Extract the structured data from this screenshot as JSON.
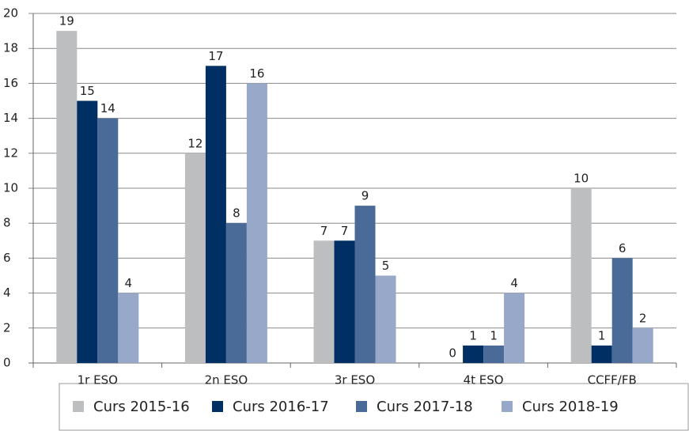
{
  "chart_data": {
    "type": "bar",
    "categories": [
      "1r ESO",
      "2n ESO",
      "3r ESO",
      "4t ESO",
      "CCFF/FB"
    ],
    "series": [
      {
        "name": "Curs 2015-16",
        "color": "#bcbec0",
        "values": [
          19,
          12,
          7,
          0,
          10
        ]
      },
      {
        "name": "Curs 2016-17",
        "color": "#003063",
        "values": [
          15,
          17,
          7,
          1,
          1
        ]
      },
      {
        "name": "Curs 2017-18",
        "color": "#4a6a98",
        "values": [
          14,
          8,
          9,
          1,
          6
        ]
      },
      {
        "name": "Curs 2018-19",
        "color": "#97a8c9",
        "values": [
          4,
          16,
          5,
          4,
          2
        ]
      }
    ],
    "ylim": [
      0,
      20
    ],
    "yticks": [
      0,
      2,
      4,
      6,
      8,
      10,
      12,
      14,
      16,
      18,
      20
    ],
    "grid": true,
    "legend": "bottom"
  }
}
